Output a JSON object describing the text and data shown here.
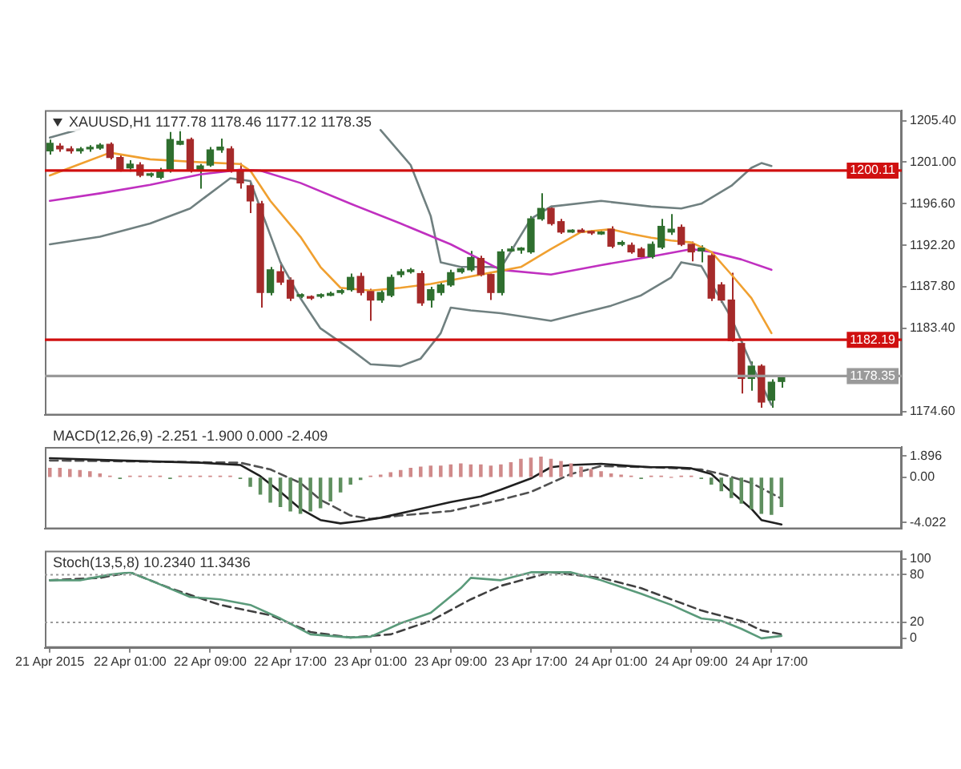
{
  "chart_data": [
    {
      "type": "candlestick",
      "title": "XAUUSD,H1 1177.78 1178.46 1177.12 1178.35",
      "x": [
        "2015-04-21T17:00",
        "2015-04-21T18:00",
        "2015-04-21T19:00",
        "2015-04-21T20:00",
        "2015-04-21T21:00",
        "2015-04-21T22:00",
        "2015-04-21T23:00",
        "2015-04-22T00:00",
        "2015-04-22T01:00",
        "2015-04-22T02:00",
        "2015-04-22T03:00",
        "2015-04-22T04:00",
        "2015-04-22T05:00",
        "2015-04-22T06:00",
        "2015-04-22T07:00",
        "2015-04-22T08:00",
        "2015-04-22T09:00",
        "2015-04-22T10:00",
        "2015-04-22T11:00",
        "2015-04-22T12:00",
        "2015-04-22T13:00",
        "2015-04-22T14:00",
        "2015-04-22T15:00",
        "2015-04-22T16:00",
        "2015-04-22T17:00",
        "2015-04-22T18:00",
        "2015-04-22T19:00",
        "2015-04-22T20:00",
        "2015-04-22T21:00",
        "2015-04-22T22:00",
        "2015-04-22T23:00",
        "2015-04-23T00:00",
        "2015-04-23T01:00",
        "2015-04-23T02:00",
        "2015-04-23T03:00",
        "2015-04-23T04:00",
        "2015-04-23T05:00",
        "2015-04-23T06:00",
        "2015-04-23T07:00",
        "2015-04-23T08:00",
        "2015-04-23T09:00",
        "2015-04-23T10:00",
        "2015-04-23T11:00",
        "2015-04-23T12:00",
        "2015-04-23T13:00",
        "2015-04-23T14:00",
        "2015-04-23T15:00",
        "2015-04-23T16:00",
        "2015-04-23T17:00",
        "2015-04-23T18:00",
        "2015-04-23T19:00",
        "2015-04-23T20:00",
        "2015-04-23T21:00",
        "2015-04-23T22:00",
        "2015-04-23T23:00",
        "2015-04-24T00:00",
        "2015-04-24T01:00",
        "2015-04-24T02:00",
        "2015-04-24T03:00",
        "2015-04-24T04:00",
        "2015-04-24T05:00",
        "2015-04-24T06:00",
        "2015-04-24T07:00",
        "2015-04-24T08:00",
        "2015-04-24T09:00",
        "2015-04-24T10:00",
        "2015-04-24T11:00",
        "2015-04-24T12:00",
        "2015-04-24T13:00",
        "2015-04-24T14:00",
        "2015-04-24T15:00",
        "2015-04-24T16:00",
        "2015-04-24T17:00",
        "2015-04-24T18:00"
      ],
      "ohlc": [
        [
          1202.2,
          1203.4,
          1201.8,
          1203.0
        ],
        [
          1202.7,
          1203.0,
          1202.1,
          1202.4
        ],
        [
          1202.4,
          1202.7,
          1201.9,
          1202.2
        ],
        [
          1202.2,
          1202.6,
          1201.9,
          1202.4
        ],
        [
          1202.4,
          1202.8,
          1202.1,
          1202.5
        ],
        [
          1202.5,
          1203.0,
          1202.3,
          1202.8
        ],
        [
          1202.9,
          1203.1,
          1201.3,
          1201.5
        ],
        [
          1201.5,
          1201.8,
          1200.0,
          1200.2
        ],
        [
          1200.4,
          1201.2,
          1200.0,
          1200.8
        ],
        [
          1200.7,
          1201.0,
          1199.4,
          1199.6
        ],
        [
          1199.6,
          1199.9,
          1199.4,
          1199.7
        ],
        [
          1199.4,
          1200.4,
          1199.2,
          1200.1
        ],
        [
          1200.1,
          1204.2,
          1199.9,
          1203.4
        ],
        [
          1202.9,
          1204.5,
          1202.8,
          1203.2
        ],
        [
          1203.4,
          1203.6,
          1199.9,
          1200.1
        ],
        [
          1200.2,
          1200.8,
          1198.2,
          1200.6
        ],
        [
          1200.7,
          1202.6,
          1200.5,
          1202.3
        ],
        [
          1202.3,
          1203.5,
          1202.0,
          1202.6
        ],
        [
          1202.4,
          1202.7,
          1199.9,
          1200.1
        ],
        [
          1200.1,
          1200.9,
          1198.2,
          1198.8
        ],
        [
          1198.5,
          1198.8,
          1195.6,
          1196.9
        ],
        [
          1196.6,
          1196.9,
          1185.6,
          1187.2
        ],
        [
          1187.2,
          1189.9,
          1186.9,
          1189.6
        ],
        [
          1189.4,
          1190.4,
          1188.0,
          1188.3
        ],
        [
          1188.5,
          1188.8,
          1186.3,
          1186.6
        ],
        [
          1186.8,
          1187.1,
          1186.6,
          1186.9
        ],
        [
          1186.7,
          1186.9,
          1186.4,
          1186.6
        ],
        [
          1186.8,
          1187.1,
          1186.6,
          1186.9
        ],
        [
          1186.9,
          1187.3,
          1186.8,
          1187.1
        ],
        [
          1187.2,
          1187.6,
          1187.0,
          1187.4
        ],
        [
          1187.5,
          1189.2,
          1187.3,
          1188.8
        ],
        [
          1188.9,
          1189.3,
          1186.9,
          1187.2
        ],
        [
          1187.3,
          1187.6,
          1184.2,
          1186.4
        ],
        [
          1186.4,
          1187.5,
          1186.1,
          1187.2
        ],
        [
          1186.9,
          1189.1,
          1186.7,
          1188.8
        ],
        [
          1189.1,
          1189.7,
          1188.8,
          1189.4
        ],
        [
          1189.4,
          1189.8,
          1189.2,
          1189.6
        ],
        [
          1189.2,
          1189.5,
          1185.8,
          1186.1
        ],
        [
          1186.4,
          1187.8,
          1185.6,
          1187.5
        ],
        [
          1187.2,
          1188.3,
          1186.9,
          1188.0
        ],
        [
          1188.0,
          1189.6,
          1187.8,
          1189.3
        ],
        [
          1189.4,
          1190.0,
          1189.2,
          1189.7
        ],
        [
          1189.6,
          1191.6,
          1189.4,
          1190.9
        ],
        [
          1190.8,
          1191.1,
          1188.9,
          1189.1
        ],
        [
          1189.1,
          1189.4,
          1186.4,
          1187.2
        ],
        [
          1187.2,
          1191.8,
          1186.9,
          1191.5
        ],
        [
          1191.6,
          1192.1,
          1191.5,
          1191.8
        ],
        [
          1191.7,
          1192.0,
          1191.3,
          1191.9
        ],
        [
          1191.5,
          1195.3,
          1191.3,
          1195.0
        ],
        [
          1195.0,
          1197.7,
          1194.8,
          1196.1
        ],
        [
          1196.1,
          1196.4,
          1194.3,
          1194.5
        ],
        [
          1194.7,
          1195.0,
          1193.4,
          1193.6
        ],
        [
          1193.6,
          1193.9,
          1193.5,
          1193.8
        ],
        [
          1193.8,
          1194.0,
          1193.5,
          1193.6
        ],
        [
          1193.6,
          1193.8,
          1193.3,
          1193.5
        ],
        [
          1193.4,
          1193.8,
          1193.3,
          1193.6
        ],
        [
          1193.9,
          1194.2,
          1191.9,
          1192.1
        ],
        [
          1192.3,
          1192.7,
          1192.1,
          1192.5
        ],
        [
          1192.2,
          1192.5,
          1191.3,
          1191.5
        ],
        [
          1191.8,
          1192.0,
          1190.8,
          1191.0
        ],
        [
          1191.0,
          1192.6,
          1190.8,
          1192.3
        ],
        [
          1192.0,
          1195.0,
          1191.8,
          1194.2
        ],
        [
          1193.6,
          1195.5,
          1193.3,
          1193.9
        ],
        [
          1194.1,
          1194.4,
          1192.1,
          1192.3
        ],
        [
          1192.3,
          1192.6,
          1190.5,
          1191.5
        ],
        [
          1191.6,
          1192.2,
          1190.4,
          1191.9
        ],
        [
          1191.1,
          1191.4,
          1186.3,
          1186.6
        ],
        [
          1188.0,
          1188.3,
          1186.1,
          1186.4
        ],
        [
          1186.4,
          1189.3,
          1182.0,
          1182.1
        ],
        [
          1181.8,
          1182.0,
          1176.5,
          1178.1
        ],
        [
          1178.1,
          1179.9,
          1176.8,
          1179.4
        ],
        [
          1179.4,
          1179.6,
          1175.0,
          1175.6
        ],
        [
          1175.8,
          1178.0,
          1175.0,
          1177.7
        ],
        [
          1177.78,
          1178.46,
          1177.12,
          1178.35
        ]
      ],
      "colors": [
        "#2f6f2f",
        "#a52a2a",
        "#a52a2a",
        "#2f6f2f",
        "#2f6f2f",
        "#2f6f2f",
        "#a52a2a",
        "#a52a2a",
        "#2f6f2f",
        "#a52a2a",
        "#2f6f2f",
        "#2f6f2f",
        "#2f6f2f",
        "#2f6f2f",
        "#a52a2a",
        "#2f6f2f",
        "#2f6f2f",
        "#2f6f2f",
        "#a52a2a",
        "#a52a2a",
        "#a52a2a",
        "#a52a2a",
        "#2f6f2f",
        "#a52a2a",
        "#a52a2a",
        "#2f6f2f",
        "#a52a2a",
        "#2f6f2f",
        "#2f6f2f",
        "#2f6f2f",
        "#2f6f2f",
        "#a52a2a",
        "#a52a2a",
        "#2f6f2f",
        "#2f6f2f",
        "#2f6f2f",
        "#2f6f2f",
        "#a52a2a",
        "#2f6f2f",
        "#2f6f2f",
        "#2f6f2f",
        "#2f6f2f",
        "#2f6f2f",
        "#a52a2a",
        "#a52a2a",
        "#2f6f2f",
        "#2f6f2f",
        "#2f6f2f",
        "#2f6f2f",
        "#2f6f2f",
        "#a52a2a",
        "#a52a2a",
        "#2f6f2f",
        "#a52a2a",
        "#a52a2a",
        "#2f6f2f",
        "#a52a2a",
        "#2f6f2f",
        "#a52a2a",
        "#a52a2a",
        "#2f6f2f",
        "#2f6f2f",
        "#2f6f2f",
        "#a52a2a",
        "#a52a2a",
        "#2f6f2f",
        "#a52a2a",
        "#a52a2a",
        "#a52a2a",
        "#a52a2a",
        "#2f6f2f",
        "#a52a2a",
        "#2f6f2f",
        "#2f6f2f"
      ],
      "series": [
        {
          "type": "line",
          "color": "#f0a030",
          "x": [
            "2015-04-21T17:00",
            "2015-04-21T20:00",
            "2015-04-21T23:00",
            "2015-04-22T03:00",
            "2015-04-22T08:00",
            "2015-04-22T12:00",
            "2015-04-22T13:00",
            "2015-04-22T15:00",
            "2015-04-22T18:00",
            "2015-04-22T20:00",
            "2015-04-22T22:00",
            "2015-04-23T01:00",
            "2015-04-23T04:00",
            "2015-04-23T07:00",
            "2015-04-23T10:00",
            "2015-04-23T13:00",
            "2015-04-23T16:00",
            "2015-04-23T19:00",
            "2015-04-23T22:00",
            "2015-04-24T01:00",
            "2015-04-24T03:00",
            "2015-04-24T05:00",
            "2015-04-24T07:00",
            "2015-04-24T09:00",
            "2015-04-24T11:00",
            "2015-04-24T13:00",
            "2015-04-24T15:00",
            "2015-04-24T17:00"
          ],
          "values": [
            1199.6,
            1200.8,
            1202.0,
            1201.3,
            1201.0,
            1200.8,
            1200.1,
            1196.9,
            1193.1,
            1189.9,
            1187.7,
            1187.4,
            1187.7,
            1188.1,
            1188.7,
            1189.3,
            1189.9,
            1191.8,
            1193.6,
            1193.9,
            1193.4,
            1193.0,
            1192.7,
            1192.5,
            1191.5,
            1189.1,
            1186.6,
            1182.9
          ]
        },
        {
          "type": "line",
          "color": "#c030c0",
          "x": [
            "2015-04-21T17:00",
            "2015-04-21T22:00",
            "2015-04-22T03:00",
            "2015-04-22T08:00",
            "2015-04-22T12:00",
            "2015-04-22T14:00",
            "2015-04-22T18:00",
            "2015-04-22T23:00",
            "2015-04-23T04:00",
            "2015-04-23T09:00",
            "2015-04-23T14:00",
            "2015-04-23T19:00",
            "2015-04-24T00:00",
            "2015-04-24T05:00",
            "2015-04-24T09:00",
            "2015-04-24T11:00",
            "2015-04-24T14:00",
            "2015-04-24T17:00"
          ],
          "values": [
            1196.9,
            1197.7,
            1198.6,
            1199.7,
            1200.2,
            1200.1,
            1198.8,
            1196.6,
            1194.5,
            1192.3,
            1189.6,
            1189.1,
            1190.1,
            1191.0,
            1191.8,
            1191.5,
            1190.7,
            1189.6
          ]
        },
        {
          "type": "line",
          "color": "#708080",
          "x": [
            "2015-04-21T17:00",
            "2015-04-21T20:00",
            "2015-04-22T13:00",
            "2015-04-23T02:00",
            "2015-04-23T05:00",
            "2015-04-23T07:00",
            "2015-04-23T08:00",
            "2015-04-23T10:00",
            "2015-04-23T13:00",
            "2015-04-23T14:00",
            "2015-04-23T17:00",
            "2015-04-23T19:00",
            "2015-04-24T00:00",
            "2015-04-24T05:00",
            "2015-04-24T08:00",
            "2015-04-24T10:00",
            "2015-04-24T13:00",
            "2015-04-24T15:00",
            "2015-04-24T16:00",
            "2015-04-24T17:00"
          ],
          "values": [
            1203.6,
            1204.5,
            null,
            1204.4,
            1200.7,
            1195.3,
            1190.4,
            1189.9,
            1189.9,
            1189.8,
            1195.0,
            1196.3,
            1196.9,
            1196.3,
            1196.1,
            1196.6,
            1198.5,
            1200.4,
            1200.9,
            1200.6
          ]
        },
        {
          "type": "line",
          "color": "#708080",
          "x": [
            "2015-04-21T17:00",
            "2015-04-21T22:00",
            "2015-04-22T03:00",
            "2015-04-22T07:00",
            "2015-04-22T10:00",
            "2015-04-22T11:00",
            "2015-04-22T13:00",
            "2015-04-22T16:00",
            "2015-04-22T18:00",
            "2015-04-22T20:00",
            "2015-04-22T23:00",
            "2015-04-23T01:00",
            "2015-04-23T04:00",
            "2015-04-23T06:00",
            "2015-04-23T08:00",
            "2015-04-23T09:00",
            "2015-04-23T11:00",
            "2015-04-23T14:00",
            "2015-04-23T19:00",
            "2015-04-23T22:00",
            "2015-04-24T01:00",
            "2015-04-24T04:00",
            "2015-04-24T07:00",
            "2015-04-24T08:00",
            "2015-04-24T10:00",
            "2015-04-24T13:00",
            "2015-04-24T15:00",
            "2015-04-24T17:00"
          ],
          "values": [
            1192.3,
            1193.1,
            1194.5,
            1196.1,
            1198.5,
            1199.3,
            1199.0,
            1190.4,
            1186.6,
            1183.4,
            1181.2,
            1179.6,
            1179.4,
            1180.2,
            1182.9,
            1185.6,
            1185.3,
            1185.0,
            1184.2,
            1185.0,
            1185.8,
            1186.9,
            1188.8,
            1190.4,
            1190.0,
            1184.5,
            1179.6,
            1175.3
          ]
        }
      ],
      "xlim": [
        "2015-04-21T16:30",
        "2015-04-25T06:00"
      ],
      "ylim": [
        1174.2,
        1206.5
      ],
      "yticks": [
        {
          "value": 1205.4,
          "label": "1205.40"
        },
        {
          "value": 1201.0,
          "label": "1201.00"
        },
        {
          "value": 1196.6,
          "label": "1196.60"
        },
        {
          "value": 1192.2,
          "label": "1192.20"
        },
        {
          "value": 1187.8,
          "label": "1187.80"
        },
        {
          "value": 1183.4,
          "label": "1183.40"
        },
        {
          "value": 1174.6,
          "label": "1174.60"
        }
      ],
      "ref_lines": [
        {
          "axis": "y",
          "value": 1200.11,
          "label": "1200.11",
          "color": "#d01010"
        },
        {
          "axis": "y",
          "value": 1182.19,
          "label": "1182.19",
          "color": "#d01010"
        },
        {
          "axis": "y",
          "value": 1178.35,
          "label": "1178.35",
          "color": "#9a9a9a"
        }
      ],
      "tick_labels": "y"
    },
    {
      "type": "bar",
      "title": "MACD(12,26,9) -2.251 -1.900 0.000 -2.409",
      "series": [
        {
          "type": "bar",
          "x": [
            "2015-04-21T17:00",
            "2015-04-21T18:00",
            "2015-04-21T19:00",
            "2015-04-21T20:00",
            "2015-04-21T21:00",
            "2015-04-21T22:00",
            "2015-04-21T23:00",
            "2015-04-22T00:00",
            "2015-04-22T01:00",
            "2015-04-22T02:00",
            "2015-04-22T03:00",
            "2015-04-22T04:00",
            "2015-04-22T05:00",
            "2015-04-22T06:00",
            "2015-04-22T07:00",
            "2015-04-22T08:00",
            "2015-04-22T09:00",
            "2015-04-22T10:00",
            "2015-04-22T11:00",
            "2015-04-22T12:00",
            "2015-04-22T13:00",
            "2015-04-22T14:00",
            "2015-04-22T15:00",
            "2015-04-22T16:00",
            "2015-04-22T17:00",
            "2015-04-22T18:00",
            "2015-04-22T19:00",
            "2015-04-22T20:00",
            "2015-04-22T21:00",
            "2015-04-22T22:00",
            "2015-04-22T23:00",
            "2015-04-23T00:00",
            "2015-04-23T01:00",
            "2015-04-23T02:00",
            "2015-04-23T03:00",
            "2015-04-23T04:00",
            "2015-04-23T05:00",
            "2015-04-23T06:00",
            "2015-04-23T07:00",
            "2015-04-23T08:00",
            "2015-04-23T09:00",
            "2015-04-23T10:00",
            "2015-04-23T11:00",
            "2015-04-23T12:00",
            "2015-04-23T13:00",
            "2015-04-23T14:00",
            "2015-04-23T15:00",
            "2015-04-23T16:00",
            "2015-04-23T17:00",
            "2015-04-23T18:00",
            "2015-04-23T19:00",
            "2015-04-23T20:00",
            "2015-04-23T21:00",
            "2015-04-23T22:00",
            "2015-04-23T23:00",
            "2015-04-24T00:00",
            "2015-04-24T01:00",
            "2015-04-24T02:00",
            "2015-04-24T03:00",
            "2015-04-24T04:00",
            "2015-04-24T05:00",
            "2015-04-24T06:00",
            "2015-04-24T07:00",
            "2015-04-24T08:00",
            "2015-04-24T09:00",
            "2015-04-24T10:00",
            "2015-04-24T11:00",
            "2015-04-24T12:00",
            "2015-04-24T13:00",
            "2015-04-24T14:00",
            "2015-04-24T15:00",
            "2015-04-24T16:00",
            "2015-04-24T17:00",
            "2015-04-24T18:00"
          ],
          "values": [
            0.8,
            0.8,
            0.7,
            0.6,
            0.5,
            0.3,
            0.1,
            -0.1,
            0.1,
            0.1,
            0.1,
            0.1,
            -0.1,
            0.1,
            0.1,
            0.1,
            0.1,
            0.1,
            0.1,
            -0.1,
            -0.8,
            -1.5,
            -2.2,
            -2.6,
            -3.0,
            -3.2,
            -3.0,
            -2.7,
            -2.1,
            -1.3,
            -0.6,
            -0.2,
            0.1,
            0.2,
            0.4,
            0.6,
            0.8,
            0.9,
            1.0,
            1.0,
            1.1,
            1.2,
            1.1,
            1.1,
            1.0,
            1.1,
            1.3,
            1.6,
            1.7,
            1.8,
            1.6,
            1.4,
            1.2,
            0.9,
            0.7,
            0.5,
            0.3,
            0.2,
            0.1,
            -0.1,
            0.1,
            0.1,
            0.0,
            0.1,
            0.1,
            -0.1,
            -0.6,
            -1.2,
            -1.8,
            -2.3,
            -2.8,
            -3.2,
            -3.3,
            -2.6
          ],
          "colors": [
            "#d08a8a",
            "#d08a8a",
            "#d08a8a",
            "#d08a8a",
            "#d08a8a",
            "#d08a8a",
            "#d08a8a",
            "#5f8f5f",
            "#d08a8a",
            "#d08a8a",
            "#d08a8a",
            "#d08a8a",
            "#5f8f5f",
            "#d08a8a",
            "#d08a8a",
            "#d08a8a",
            "#d08a8a",
            "#d08a8a",
            "#d08a8a",
            "#5f8f5f",
            "#5f8f5f",
            "#5f8f5f",
            "#5f8f5f",
            "#5f8f5f",
            "#5f8f5f",
            "#5f8f5f",
            "#5f8f5f",
            "#5f8f5f",
            "#5f8f5f",
            "#5f8f5f",
            "#5f8f5f",
            "#5f8f5f",
            "#d08a8a",
            "#d08a8a",
            "#d08a8a",
            "#d08a8a",
            "#d08a8a",
            "#d08a8a",
            "#d08a8a",
            "#d08a8a",
            "#d08a8a",
            "#d08a8a",
            "#d08a8a",
            "#d08a8a",
            "#d08a8a",
            "#d08a8a",
            "#d08a8a",
            "#d08a8a",
            "#d08a8a",
            "#d08a8a",
            "#d08a8a",
            "#d08a8a",
            "#d08a8a",
            "#d08a8a",
            "#d08a8a",
            "#d08a8a",
            "#d08a8a",
            "#d08a8a",
            "#d08a8a",
            "#5f8f5f",
            "#d08a8a",
            "#d08a8a",
            "#d08a8a",
            "#d08a8a",
            "#d08a8a",
            "#5f8f5f",
            "#5f8f5f",
            "#5f8f5f",
            "#5f8f5f",
            "#5f8f5f",
            "#5f8f5f",
            "#5f8f5f",
            "#5f8f5f",
            "#5f8f5f"
          ]
        },
        {
          "type": "line",
          "color": "#202020",
          "x": [
            "2015-04-21T17:00",
            "2015-04-22T00:00",
            "2015-04-22T08:00",
            "2015-04-22T12:00",
            "2015-04-22T14:00",
            "2015-04-22T16:00",
            "2015-04-22T18:00",
            "2015-04-22T20:00",
            "2015-04-22T22:00",
            "2015-04-23T00:00",
            "2015-04-23T02:00",
            "2015-04-23T05:00",
            "2015-04-23T09:00",
            "2015-04-23T12:00",
            "2015-04-23T14:00",
            "2015-04-23T17:00",
            "2015-04-23T19:00",
            "2015-04-23T21:00",
            "2015-04-24T00:00",
            "2015-04-24T03:00",
            "2015-04-24T05:00",
            "2015-04-24T07:00",
            "2015-04-24T09:00",
            "2015-04-24T11:00",
            "2015-04-24T13:00",
            "2015-04-24T15:00",
            "2015-04-24T16:00",
            "2015-04-24T18:00"
          ],
          "values": [
            1.7,
            1.5,
            1.3,
            1.1,
            0.1,
            -1.3,
            -2.8,
            -3.8,
            -4.1,
            -3.9,
            -3.6,
            -3.0,
            -2.2,
            -1.7,
            -1.1,
            -0.1,
            0.9,
            1.1,
            1.2,
            1.0,
            0.9,
            0.9,
            0.8,
            0.3,
            -1.3,
            -2.8,
            -3.8,
            -4.2
          ]
        },
        {
          "type": "line",
          "color": "#505050",
          "line_style": "dashed",
          "x": [
            "2015-04-21T17:00",
            "2015-04-22T03:00",
            "2015-04-22T12:00",
            "2015-04-22T15:00",
            "2015-04-22T18:00",
            "2015-04-22T20:00",
            "2015-04-22T23:00",
            "2015-04-23T01:00",
            "2015-04-23T04:00",
            "2015-04-23T09:00",
            "2015-04-23T14:00",
            "2015-04-23T17:00",
            "2015-04-23T19:00",
            "2015-04-23T21:00",
            "2015-04-24T00:00",
            "2015-04-24T05:00",
            "2015-04-24T10:00",
            "2015-04-24T12:00",
            "2015-04-24T15:00",
            "2015-04-24T18:00"
          ],
          "values": [
            1.5,
            1.4,
            1.3,
            0.7,
            -0.5,
            -2.0,
            -3.4,
            -3.7,
            -3.4,
            -3.0,
            -2.0,
            -1.3,
            -0.5,
            0.3,
            1.0,
            0.9,
            0.7,
            0.3,
            -0.5,
            -1.9
          ]
        }
      ],
      "xlim": [
        "2015-04-21T16:30",
        "2015-04-25T06:00"
      ],
      "ylim": [
        -4.6,
        2.7
      ],
      "yticks": [
        1.896,
        {
          "value": 0,
          "label": "0.00"
        },
        -4.022
      ],
      "tick_labels": "y"
    },
    {
      "type": "line",
      "title": "Stoch(13,5,8) 10.2340 11.3436",
      "series": [
        {
          "color": "#5a9a7a",
          "x": [
            "2015-04-21T17:00",
            "2015-04-21T20:00",
            "2015-04-21T23:00",
            "2015-04-22T01:00",
            "2015-04-22T03:00",
            "2015-04-22T07:00",
            "2015-04-22T10:00",
            "2015-04-22T13:00",
            "2015-04-22T16:00",
            "2015-04-22T19:00",
            "2015-04-22T23:00",
            "2015-04-23T01:00",
            "2015-04-23T04:00",
            "2015-04-23T07:00",
            "2015-04-23T10:00",
            "2015-04-23T11:00",
            "2015-04-23T14:00",
            "2015-04-23T17:00",
            "2015-04-23T21:00",
            "2015-04-24T00:00",
            "2015-04-24T04:00",
            "2015-04-24T07:00",
            "2015-04-24T10:00",
            "2015-04-24T12:00",
            "2015-04-24T14:00",
            "2015-04-24T16:00",
            "2015-04-24T18:00"
          ],
          "values": [
            73,
            73,
            80,
            83,
            73,
            52,
            49,
            42,
            25,
            5,
            1,
            2,
            19,
            32,
            63,
            76,
            73,
            83,
            83,
            73,
            56,
            42,
            25,
            22,
            12,
            0,
            3
          ]
        },
        {
          "color": "#404040",
          "line_style": "dashed",
          "x": [
            "2015-04-21T17:00",
            "2015-04-21T22:00",
            "2015-04-22T01:00",
            "2015-04-22T05:00",
            "2015-04-22T10:00",
            "2015-04-22T15:00",
            "2015-04-22T19:00",
            "2015-04-22T23:00",
            "2015-04-23T03:00",
            "2015-04-23T07:00",
            "2015-04-23T11:00",
            "2015-04-23T14:00",
            "2015-04-23T19:00",
            "2015-04-24T00:00",
            "2015-04-24T04:00",
            "2015-04-24T10:00",
            "2015-04-24T14:00",
            "2015-04-24T16:00",
            "2015-04-24T18:00"
          ],
          "values": [
            73,
            76,
            83,
            63,
            42,
            29,
            8,
            1,
            5,
            22,
            49,
            66,
            83,
            76,
            63,
            35,
            22,
            10,
            5
          ]
        }
      ],
      "xlim": [
        "2015-04-21T16:30",
        "2015-04-25T06:00"
      ],
      "xticks": [
        {
          "value": "2015-04-21T17:00",
          "label": "21 Apr 2015"
        },
        {
          "value": "2015-04-22T01:00",
          "label": "22 Apr 01:00"
        },
        {
          "value": "2015-04-22T09:00",
          "label": "22 Apr 09:00"
        },
        {
          "value": "2015-04-22T17:00",
          "label": "22 Apr 17:00"
        },
        {
          "value": "2015-04-23T01:00",
          "label": "23 Apr 01:00"
        },
        {
          "value": "2015-04-23T09:00",
          "label": "23 Apr 09:00"
        },
        {
          "value": "2015-04-23T17:00",
          "label": "23 Apr 17:00"
        },
        {
          "value": "2015-04-24T01:00",
          "label": "24 Apr 01:00"
        },
        {
          "value": "2015-04-24T09:00",
          "label": "24 Apr 09:00"
        },
        {
          "value": "2015-04-24T17:00",
          "label": "24 Apr 17:00"
        }
      ],
      "ylim": [
        -12,
        110
      ],
      "yticks": [
        100,
        80,
        20,
        0
      ],
      "ref_lines": [
        {
          "axis": "y",
          "value": 80,
          "color": "#9a9a9a",
          "line_style": "dotted"
        },
        {
          "axis": "y",
          "value": 20,
          "color": "#9a9a9a",
          "line_style": "dotted"
        }
      ]
    }
  ]
}
